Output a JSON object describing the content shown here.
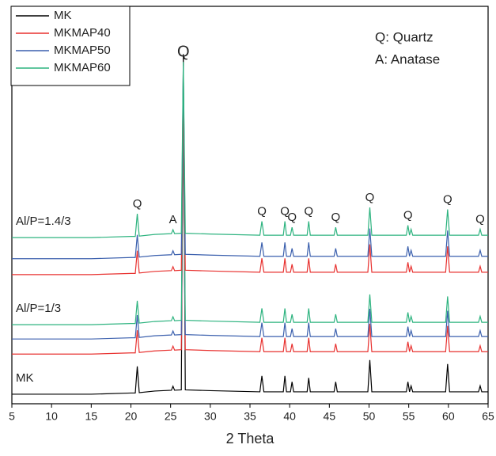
{
  "chart_data": {
    "type": "line",
    "xlabel": "2 Theta",
    "xlim": [
      5,
      65
    ],
    "xticks": [
      5,
      10,
      15,
      20,
      25,
      30,
      35,
      40,
      45,
      50,
      55,
      60,
      65
    ],
    "ylim": [
      0,
      100
    ],
    "x": [
      5,
      10,
      15,
      20,
      20.55,
      20.8,
      21.05,
      23,
      25.1,
      25.3,
      25.5,
      26.35,
      26.6,
      26.85,
      30,
      36.25,
      36.5,
      36.75,
      39.2,
      39.4,
      39.6,
      40.1,
      40.3,
      40.5,
      42.2,
      42.4,
      42.6,
      45.6,
      45.8,
      46.0,
      49.85,
      50.1,
      50.35,
      54.7,
      54.9,
      55.1,
      55.3,
      55.5,
      59.65,
      59.9,
      60.15,
      63.8,
      64.0,
      64.2,
      65
    ],
    "series": [
      {
        "name": "MK",
        "color": "#000000",
        "values": [
          2.4,
          2.4,
          2.4,
          2.7,
          2.7,
          9.4,
          2.8,
          3.2,
          3.4,
          4.4,
          3.4,
          3.5,
          88,
          3.5,
          3.3,
          3.0,
          7.0,
          3.0,
          3.0,
          7.0,
          3.0,
          3.0,
          5.5,
          3.0,
          3.0,
          6.5,
          3.0,
          3.0,
          5.5,
          3.0,
          3.0,
          11.0,
          3.0,
          3.0,
          5.5,
          3.0,
          4.5,
          3.0,
          3.0,
          10.0,
          3.0,
          3.0,
          4.5,
          3.0,
          3.0
        ]
      },
      {
        "name": "MKMAP40",
        "color": "#e8312f",
        "values": [
          12.5,
          12.5,
          12.5,
          12.8,
          12.8,
          18.5,
          12.9,
          13.3,
          13.5,
          14.5,
          13.5,
          13.6,
          70,
          13.6,
          13.4,
          13.1,
          16.6,
          13.1,
          13.1,
          16.6,
          13.1,
          13.1,
          15.1,
          13.1,
          13.1,
          16.6,
          13.1,
          13.1,
          15.1,
          13.1,
          13.1,
          20.1,
          13.1,
          13.1,
          15.6,
          13.1,
          14.6,
          13.1,
          13.1,
          19.6,
          13.1,
          13.1,
          14.6,
          13.1,
          13.1
        ]
      },
      {
        "name": "MKMAP50",
        "color": "#3a5fad",
        "values": [
          16.3,
          16.3,
          16.3,
          16.6,
          16.6,
          22.3,
          16.7,
          17.1,
          17.3,
          18.3,
          17.3,
          17.4,
          75,
          17.4,
          17.2,
          16.9,
          20.4,
          16.9,
          16.9,
          20.4,
          16.9,
          16.9,
          18.9,
          16.9,
          16.9,
          20.4,
          16.9,
          16.9,
          18.9,
          16.9,
          16.9,
          23.9,
          16.9,
          16.9,
          19.4,
          16.9,
          18.4,
          16.9,
          16.9,
          23.4,
          16.9,
          16.9,
          18.4,
          16.9,
          16.9
        ]
      },
      {
        "name": "MKMAP60",
        "color": "#2db37f",
        "values": [
          19.9,
          19.9,
          19.9,
          20.2,
          20.2,
          25.9,
          20.3,
          20.7,
          20.9,
          21.9,
          20.9,
          21.0,
          80,
          21.0,
          20.8,
          20.5,
          24.0,
          20.5,
          20.5,
          24.0,
          20.5,
          20.5,
          22.5,
          20.5,
          20.5,
          24.0,
          20.5,
          20.5,
          22.5,
          20.5,
          20.5,
          27.5,
          20.5,
          20.5,
          23.0,
          20.5,
          22.0,
          20.5,
          20.5,
          27.0,
          20.5,
          20.5,
          22.0,
          20.5,
          20.5
        ]
      },
      {
        "name": "MKMAP40",
        "color": "#e8312f",
        "values": [
          32.5,
          32.5,
          32.5,
          32.8,
          32.8,
          38.5,
          32.9,
          33.3,
          33.5,
          34.5,
          33.5,
          33.6,
          78,
          33.6,
          33.4,
          33.1,
          36.6,
          33.1,
          33.1,
          36.6,
          33.1,
          33.1,
          35.1,
          33.1,
          33.1,
          36.6,
          33.1,
          33.1,
          35.1,
          33.1,
          33.1,
          40.1,
          33.1,
          33.1,
          35.6,
          33.1,
          34.6,
          33.1,
          33.1,
          39.6,
          33.1,
          33.1,
          34.6,
          33.1,
          33.1
        ]
      },
      {
        "name": "MKMAP50",
        "color": "#3a5fad",
        "values": [
          36.5,
          36.5,
          36.5,
          36.8,
          36.8,
          42.5,
          36.9,
          37.3,
          37.5,
          38.5,
          37.5,
          37.6,
          85,
          37.6,
          37.4,
          37.1,
          40.6,
          37.1,
          37.1,
          40.6,
          37.1,
          37.1,
          39.1,
          37.1,
          37.1,
          40.6,
          37.1,
          37.1,
          39.1,
          37.1,
          37.1,
          44.1,
          37.1,
          37.1,
          39.6,
          37.1,
          38.6,
          37.1,
          37.1,
          43.6,
          37.1,
          37.1,
          38.6,
          37.1,
          37.1
        ]
      },
      {
        "name": "MKMAP60",
        "color": "#2db37f",
        "values": [
          41.8,
          41.8,
          41.8,
          42.1,
          42.1,
          47.8,
          42.2,
          42.6,
          42.8,
          43.8,
          42.8,
          42.9,
          86,
          42.9,
          42.7,
          42.4,
          45.9,
          42.4,
          42.4,
          45.9,
          42.4,
          42.4,
          44.4,
          42.4,
          42.4,
          45.9,
          42.4,
          42.4,
          44.4,
          42.4,
          42.4,
          49.4,
          42.4,
          42.4,
          44.9,
          42.4,
          43.9,
          42.4,
          42.4,
          48.9,
          42.4,
          42.4,
          43.9,
          42.4,
          42.4
        ]
      }
    ],
    "group_labels": [
      {
        "text": "Al/P=1.4/3",
        "series": 6
      },
      {
        "text": "Al/P=1/3",
        "series": 3
      },
      {
        "text": "MK",
        "series": 0
      }
    ],
    "peak_labels": [
      {
        "text": "Q",
        "x": 20.8
      },
      {
        "text": "A",
        "x": 25.3
      },
      {
        "text": "Q",
        "x": 26.6
      },
      {
        "text": "Q",
        "x": 36.5
      },
      {
        "text": "Q",
        "x": 39.4
      },
      {
        "text": "Q",
        "x": 40.3
      },
      {
        "text": "Q",
        "x": 42.4
      },
      {
        "text": "Q",
        "x": 45.8
      },
      {
        "text": "Q",
        "x": 50.1
      },
      {
        "text": "Q",
        "x": 54.9
      },
      {
        "text": "Q",
        "x": 59.9
      },
      {
        "text": "Q",
        "x": 64.0
      }
    ],
    "key": [
      "Q: Quartz",
      "A: Anatase"
    ],
    "legend": "upper left"
  }
}
